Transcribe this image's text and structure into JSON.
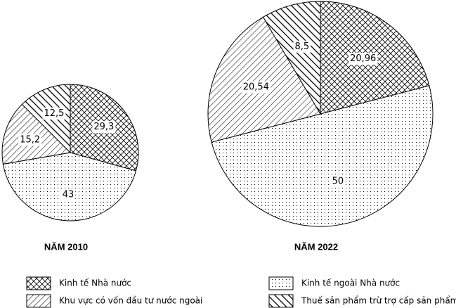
{
  "chart_data": [
    {
      "type": "pie",
      "title": "NĂM 2010",
      "categories": [
        "Kinh tế Nhà nước",
        "Kinh tế ngoài Nhà nước",
        "Khu vực có vốn đầu tư nước ngoài",
        "Thuế sản phẩm trừ trợ cấp sản phẩm"
      ],
      "values": [
        29.3,
        43,
        15.2,
        12.5
      ],
      "value_labels": [
        "29,3",
        "43",
        "15,2",
        "12,5"
      ],
      "patterns": [
        "crosshatch",
        "dots",
        "hatch",
        "bold-hatch"
      ]
    },
    {
      "type": "pie",
      "title": "NĂM 2022",
      "categories": [
        "Kinh tế Nhà nước",
        "Kinh tế ngoài Nhà nước",
        "Khu vực có vốn đầu tư nước ngoài",
        "Thuế sản phẩm trừ trợ cấp sản phẩm"
      ],
      "values": [
        20.96,
        50,
        20.54,
        8.5
      ],
      "value_labels": [
        "20,96",
        "50",
        "20,54",
        "8,5"
      ],
      "patterns": [
        "crosshatch",
        "dots",
        "hatch",
        "bold-hatch"
      ]
    }
  ]
}
